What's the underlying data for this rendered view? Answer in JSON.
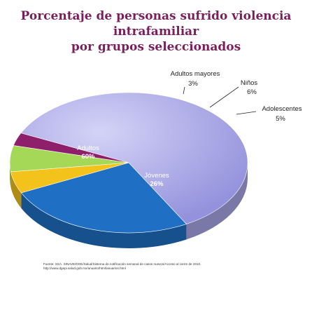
{
  "title_line1": "Porcentaje de personas sufrido violencia intrafamiliar",
  "title_line2": "por grupos seleccionados",
  "source_line1": "Fuente:  SSA. SINAVE/DGE/Salud/Sistema de notificación semanal de casos nuevos/Acceso al cierre de 2010.",
  "source_line2": "http://www.dgepi.salud.gob.mx/anuario/html/anuarios.html",
  "colors": {
    "title": "#7a1f5c",
    "adultos": "#a8a6e6",
    "jovenes": "#1f6fc4",
    "adolescentes": "#f3c21b",
    "ninos": "#a6d858",
    "adultos_mayores": "#8e1f6b"
  },
  "chart_data": {
    "type": "pie",
    "title": "Porcentaje de personas sufrido violencia intrafamiliar por grupos seleccionados",
    "slices": [
      {
        "label": "Adultos",
        "value": 60,
        "value_label": "60%"
      },
      {
        "label": "Jóvenes",
        "value": 26,
        "value_label": "26%"
      },
      {
        "label": "Adolescentes",
        "value": 5,
        "value_label": "5%"
      },
      {
        "label": "Niños",
        "value": 6,
        "value_label": "6%"
      },
      {
        "label": "Adultos mayores",
        "value": 3,
        "value_label": "3%"
      }
    ]
  }
}
